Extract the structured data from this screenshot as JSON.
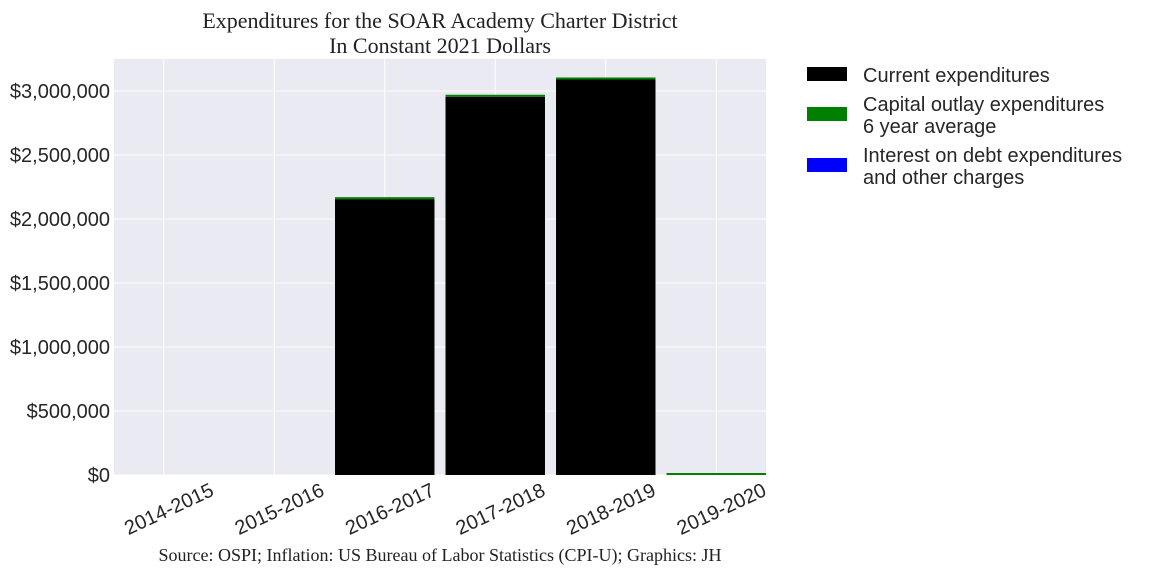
{
  "chart_data": {
    "type": "bar",
    "title": "Expenditures for the SOAR Academy Charter District",
    "subtitle": "In Constant 2021 Dollars",
    "xlabel": "",
    "ylabel": "",
    "categories": [
      "2014-2015",
      "2015-2016",
      "2016-2017",
      "2017-2018",
      "2018-2019",
      "2019-2020"
    ],
    "stacked": true,
    "series": [
      {
        "name": "Current expenditures",
        "color": "#000000",
        "values": [
          0,
          0,
          2155000,
          2955000,
          3090000,
          0
        ]
      },
      {
        "name": "Capital outlay expenditures\n6 year average",
        "color": "#008000",
        "values": [
          0,
          0,
          10000,
          10000,
          10000,
          10000
        ]
      },
      {
        "name": "Interest on debt expenditures\nand other charges",
        "color": "#0000ff",
        "values": [
          0,
          0,
          0,
          0,
          0,
          0
        ]
      }
    ],
    "ylim": [
      0,
      3250000
    ],
    "yticks": [
      0,
      500000,
      1000000,
      1500000,
      2000000,
      2500000,
      3000000
    ],
    "ytick_labels": [
      "$0",
      "$500,000",
      "$1,000,000",
      "$1,500,000",
      "$2,000,000",
      "$2,500,000",
      "$3,000,000"
    ],
    "grid": true,
    "legend_position": "outside-right",
    "background_color": "#eaeaf2",
    "footer": "Source: OSPI; Inflation: US Bureau of Labor Statistics (CPI-U); Graphics: JH"
  }
}
